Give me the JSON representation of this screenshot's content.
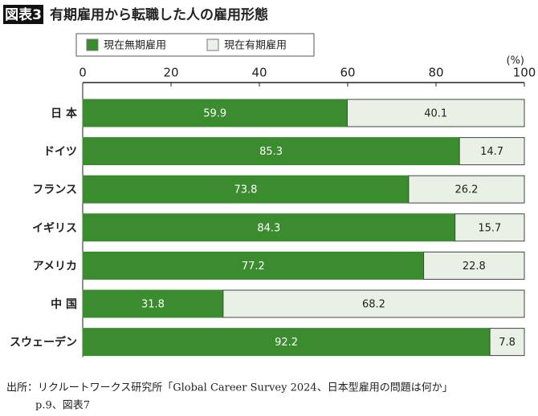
{
  "chart_data": {
    "type": "bar",
    "orientation": "horizontal",
    "stacked": true,
    "figure_label": "図表3",
    "title": "有期雇用から転職した人の雇用形態",
    "unit": "(%)",
    "categories": [
      "日 本",
      "ドイツ",
      "フランス",
      "イギリス",
      "アメリカ",
      "中 国",
      "スウェーデン"
    ],
    "series": [
      {
        "name": "現在無期雇用",
        "color": "#3b8b2f",
        "values": [
          59.9,
          85.3,
          73.8,
          84.3,
          77.2,
          31.8,
          92.2
        ]
      },
      {
        "name": "現在有期雇用",
        "color": "#e9f1e6",
        "values": [
          40.1,
          14.7,
          26.2,
          15.7,
          22.8,
          68.2,
          7.8
        ]
      }
    ],
    "xlim": [
      0,
      100
    ],
    "xticks": [
      0,
      20,
      40,
      60,
      80,
      100
    ],
    "source": [
      "出所：リクルートワークス研究所「Global Career Survey 2024、日本型雇用の問題は何か」",
      "p.9、図表7"
    ]
  }
}
